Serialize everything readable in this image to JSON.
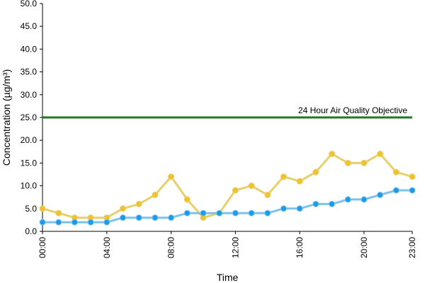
{
  "chart_data": {
    "type": "line",
    "xlabel": "Time",
    "ylabel": "Concentration (µg/m³)",
    "ylim": [
      0,
      50
    ],
    "yticks": [
      "0.0",
      "5.0",
      "10.0",
      "15.0",
      "20.0",
      "25.0",
      "30.0",
      "35.0",
      "40.0",
      "45.0",
      "50.0"
    ],
    "x": [
      "00:00",
      "01:00",
      "02:00",
      "03:00",
      "04:00",
      "05:00",
      "06:00",
      "07:00",
      "08:00",
      "09:00",
      "10:00",
      "11:00",
      "12:00",
      "13:00",
      "14:00",
      "15:00",
      "16:00",
      "17:00",
      "18:00",
      "19:00",
      "20:00",
      "21:00",
      "22:00",
      "23:00"
    ],
    "xticks": [
      "00:00",
      "04:00",
      "08:00",
      "12:00",
      "16:00",
      "20:00",
      "23:00"
    ],
    "series": [
      {
        "color": "#f2c12e",
        "line_color": "#e8cf6a",
        "values": [
          5,
          4,
          3,
          3,
          3,
          5,
          6,
          8,
          12,
          7,
          3,
          4,
          9,
          10,
          8,
          12,
          11,
          13,
          17,
          15,
          15,
          17,
          13,
          12
        ]
      },
      {
        "color": "#1e9be8",
        "line_color": "#7cc2ee",
        "values": [
          2,
          2,
          2,
          2,
          2,
          3,
          3,
          3,
          3,
          4,
          4,
          4,
          4,
          4,
          4,
          5,
          5,
          6,
          6,
          7,
          7,
          8,
          9,
          9
        ]
      }
    ],
    "reference_line": {
      "value": 25,
      "label": "24 Hour Air Quality Objective",
      "color": "#1f7a1f"
    },
    "grid": false
  }
}
